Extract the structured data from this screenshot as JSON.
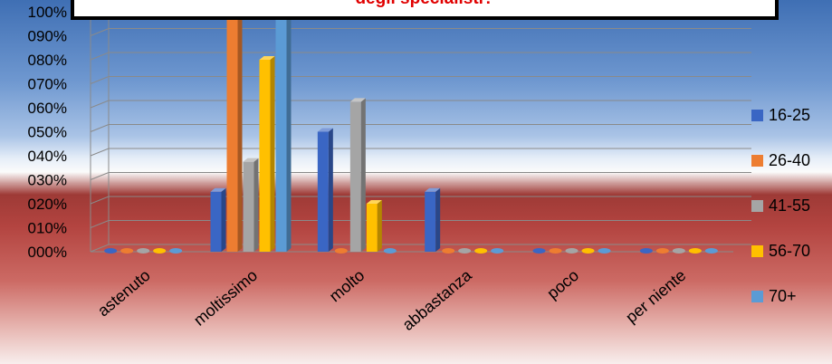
{
  "chart_data": {
    "type": "bar",
    "title": "degli specialisti?",
    "categories": [
      "astenuto",
      "moltissimo",
      "molto",
      "abbastanza",
      "poco",
      "per niente"
    ],
    "y_tick_labels": [
      "000%",
      "010%",
      "020%",
      "030%",
      "040%",
      "050%",
      "060%",
      "070%",
      "080%",
      "090%",
      "100%"
    ],
    "ylim": [
      0,
      1
    ],
    "grid": true,
    "legend_position": "right",
    "series": [
      {
        "name": "16-25",
        "color": "#3a66c4",
        "values": [
          0,
          0.25,
          0.5,
          0.25,
          0,
          0
        ]
      },
      {
        "name": "26-40",
        "color": "#ed7d31",
        "values": [
          0,
          1.0,
          0,
          0,
          0,
          0
        ]
      },
      {
        "name": "41-55",
        "color": "#a5a5a5",
        "values": [
          0,
          0.375,
          0.625,
          0,
          0,
          0
        ]
      },
      {
        "name": "56-70",
        "color": "#ffc000",
        "values": [
          0,
          0.8,
          0.2,
          0,
          0,
          0
        ]
      },
      {
        "name": "70+",
        "color": "#5b9bd5",
        "values": [
          0,
          1.0,
          0,
          0,
          0,
          0
        ]
      }
    ]
  }
}
